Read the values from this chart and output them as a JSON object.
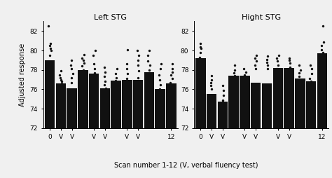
{
  "left_title": "Left STG",
  "right_title": "Hight STG",
  "xlabel": "Scan number 1-12 (V, verbal fluency test)",
  "ylabel": "Adjusted response",
  "ylim": [
    72,
    83
  ],
  "yticks": [
    72,
    74,
    76,
    78,
    80,
    82
  ],
  "xtick_labels": [
    "0",
    "V",
    "V",
    "V",
    "V",
    "V",
    "V",
    "12"
  ],
  "xtick_positions": [
    1,
    2,
    3,
    5,
    6,
    8,
    9,
    12
  ],
  "left_bars": [
    79.0,
    76.6,
    76.1,
    78.0,
    77.6,
    76.1,
    76.9,
    77.0,
    76.95,
    77.8,
    76.05,
    76.6
  ],
  "right_bars": [
    79.2,
    75.5,
    74.7,
    77.4,
    77.4,
    76.7,
    76.6,
    78.2,
    78.2,
    77.1,
    76.8,
    79.7
  ],
  "left_dots": [
    [
      82.5,
      80.7,
      80.5,
      80.2,
      80.0,
      79.5
    ],
    [
      77.9,
      77.5,
      77.2,
      77.0,
      76.8,
      76.6
    ],
    [
      79.0,
      78.5,
      78.1,
      77.6,
      77.2,
      76.7
    ],
    [
      79.6,
      79.2,
      79.0,
      78.7,
      78.4,
      78.0
    ],
    [
      80.0,
      79.5,
      78.6,
      78.1,
      77.7,
      77.3
    ],
    [
      78.3,
      77.8,
      77.3,
      76.8,
      76.5,
      76.1
    ],
    [
      78.1,
      77.6,
      77.2,
      76.9,
      76.5,
      76.2
    ],
    [
      80.1,
      78.6,
      78.1,
      77.6,
      77.1,
      76.6
    ],
    [
      80.0,
      79.5,
      79.0,
      78.5,
      77.9,
      77.2
    ],
    [
      80.0,
      79.5,
      78.9,
      78.5,
      78.0,
      77.5
    ],
    [
      78.6,
      78.1,
      77.5,
      77.0,
      76.5,
      76.0
    ],
    [
      78.6,
      78.1,
      77.8,
      77.5,
      77.1,
      76.7
    ]
  ],
  "right_dots": [
    [
      80.7,
      80.4,
      80.2,
      79.8,
      79.3
    ],
    [
      77.4,
      77.0,
      76.7,
      76.4,
      76.0
    ],
    [
      76.4,
      75.9,
      75.4,
      74.9,
      74.7
    ],
    [
      78.5,
      78.0,
      77.7,
      77.4,
      77.1
    ],
    [
      78.1,
      77.8,
      77.5,
      77.2,
      76.9
    ],
    [
      79.5,
      79.2,
      78.9,
      78.5,
      78.1
    ],
    [
      79.4,
      79.1,
      78.8,
      78.5,
      78.1
    ],
    [
      79.5,
      79.2,
      78.9,
      78.5,
      78.1
    ],
    [
      79.2,
      79.0,
      78.7,
      78.3,
      78.0
    ],
    [
      78.5,
      78.0,
      77.7,
      77.3,
      77.0
    ],
    [
      78.5,
      78.1,
      77.6,
      77.1,
      76.8
    ],
    [
      82.5,
      80.9,
      80.5,
      80.1,
      79.8
    ]
  ],
  "bar_color": "#111111",
  "dot_color": "#111111",
  "bg_color": "#f0f0f0"
}
